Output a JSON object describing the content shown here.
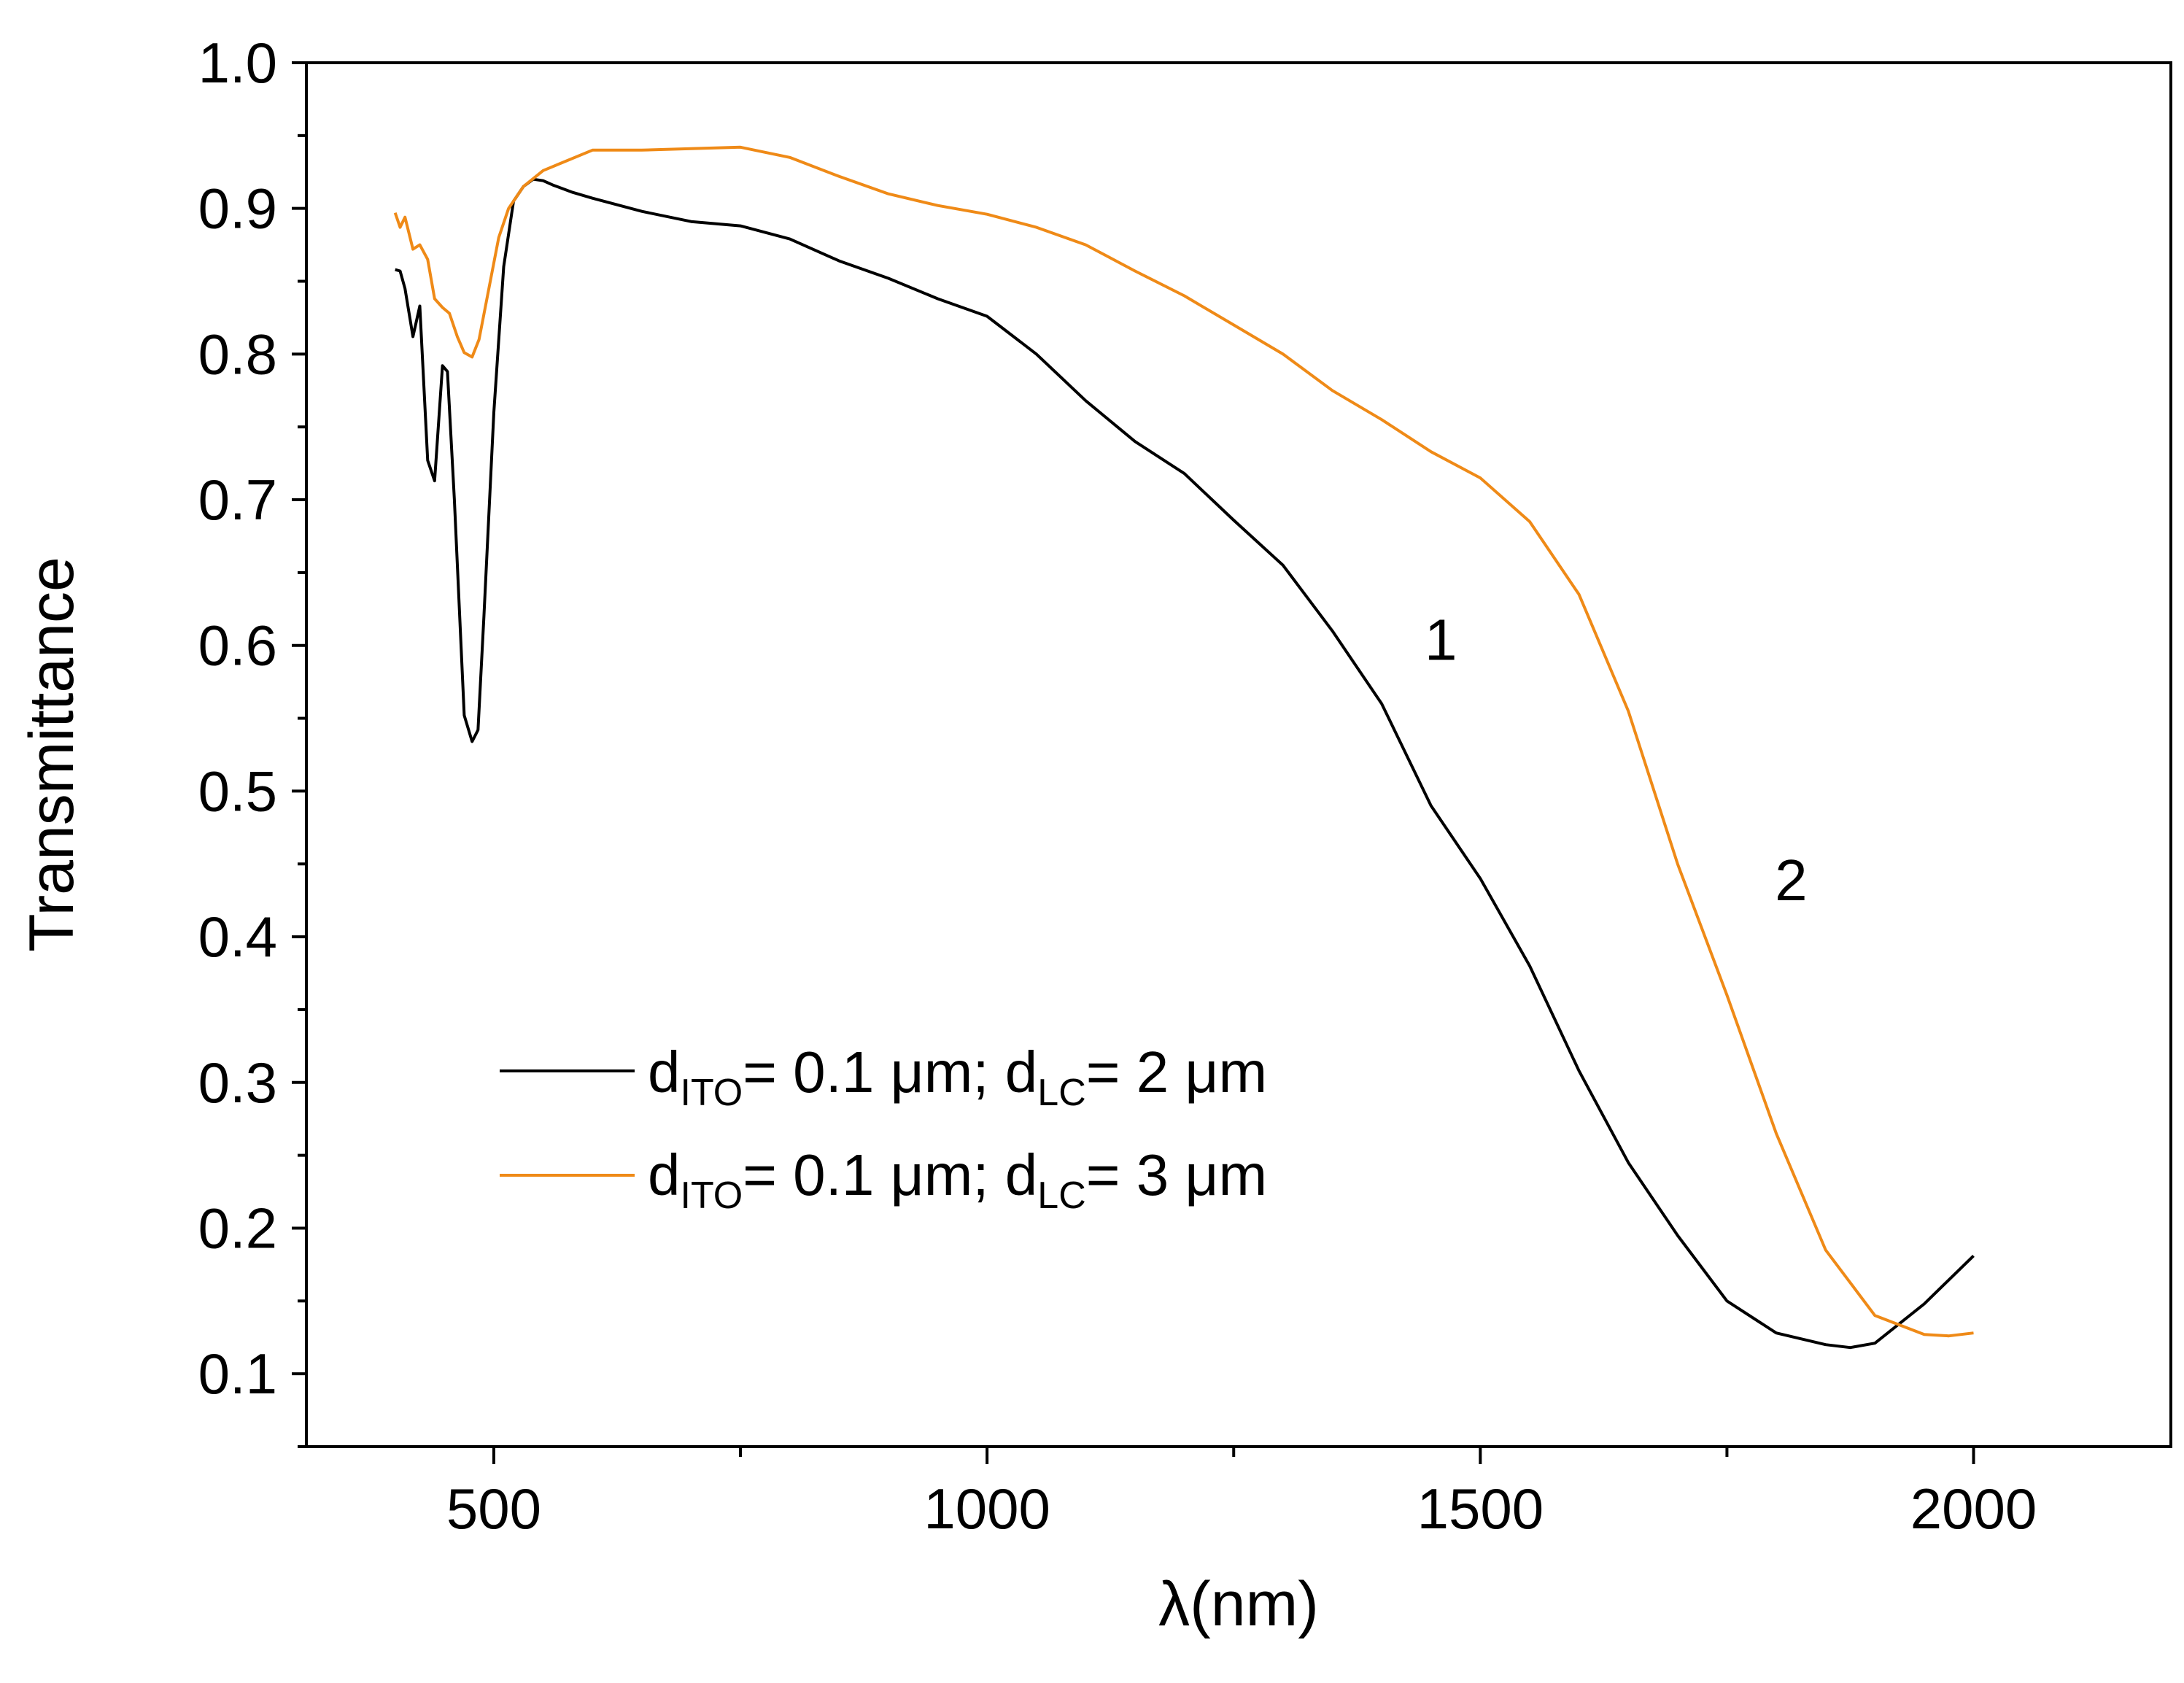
{
  "chart_data": {
    "type": "line",
    "xlabel": "λ(nm)",
    "ylabel": "Transmittance",
    "xlim": [
      310,
      2200
    ],
    "ylim": [
      0.05,
      1.0
    ],
    "x_ticks": [
      500,
      1000,
      1500,
      2000
    ],
    "x_tick_labels": [
      "500",
      "1000",
      "1500",
      "2000"
    ],
    "y_ticks": [
      0.1,
      0.2,
      0.3,
      0.4,
      0.5,
      0.6,
      0.7,
      0.8,
      0.9,
      1.0
    ],
    "y_tick_labels": [
      "0.1",
      "0.2",
      "0.3",
      "0.4",
      "0.5",
      "0.6",
      "0.7",
      "0.8",
      "0.9",
      "1.0"
    ],
    "grid": false,
    "legend_position": "lower-left",
    "series": [
      {
        "name": "1",
        "legend": {
          "base": "d",
          "sub1": "ITO",
          "mid": "= 0.1 μm; d",
          "sub2": "LC",
          "end": "= 2 μm"
        },
        "color": "#000000",
        "x": [
          400,
          405,
          410,
          418,
          425,
          433,
          440,
          448,
          453,
          460,
          470,
          478,
          484,
          490,
          500,
          510,
          520,
          530,
          540,
          550,
          560,
          580,
          600,
          650,
          700,
          750,
          800,
          850,
          900,
          950,
          1000,
          1050,
          1100,
          1150,
          1200,
          1250,
          1300,
          1350,
          1400,
          1450,
          1500,
          1550,
          1600,
          1650,
          1700,
          1750,
          1800,
          1850,
          1875,
          1900,
          1950,
          2000
        ],
        "y": [
          0.858,
          0.857,
          0.845,
          0.812,
          0.833,
          0.727,
          0.713,
          0.792,
          0.788,
          0.7,
          0.552,
          0.534,
          0.542,
          0.62,
          0.76,
          0.86,
          0.905,
          0.915,
          0.92,
          0.919,
          0.916,
          0.911,
          0.907,
          0.898,
          0.891,
          0.888,
          0.879,
          0.864,
          0.852,
          0.838,
          0.826,
          0.8,
          0.768,
          0.74,
          0.718,
          0.686,
          0.655,
          0.61,
          0.56,
          0.49,
          0.44,
          0.38,
          0.308,
          0.245,
          0.195,
          0.15,
          0.128,
          0.12,
          0.118,
          0.121,
          0.148,
          0.181
        ]
      },
      {
        "name": "2",
        "legend": {
          "base": "d",
          "sub1": "ITO",
          "mid": "= 0.1 μm; d",
          "sub2": "LC",
          "end": "= 3 μm"
        },
        "color": "#ef8a17",
        "x": [
          400,
          405,
          410,
          418,
          425,
          433,
          440,
          448,
          455,
          463,
          470,
          478,
          485,
          495,
          505,
          515,
          530,
          550,
          600,
          650,
          700,
          750,
          800,
          850,
          900,
          950,
          1000,
          1050,
          1100,
          1150,
          1200,
          1250,
          1300,
          1350,
          1400,
          1450,
          1500,
          1550,
          1600,
          1650,
          1700,
          1750,
          1800,
          1850,
          1900,
          1950,
          1975,
          2000
        ],
        "y": [
          0.897,
          0.887,
          0.894,
          0.872,
          0.875,
          0.865,
          0.838,
          0.832,
          0.828,
          0.812,
          0.801,
          0.798,
          0.81,
          0.845,
          0.88,
          0.9,
          0.915,
          0.926,
          0.94,
          0.94,
          0.941,
          0.942,
          0.935,
          0.922,
          0.91,
          0.902,
          0.896,
          0.887,
          0.875,
          0.857,
          0.84,
          0.82,
          0.8,
          0.775,
          0.755,
          0.733,
          0.715,
          0.685,
          0.635,
          0.555,
          0.45,
          0.36,
          0.265,
          0.185,
          0.14,
          0.127,
          0.126,
          0.128
        ]
      }
    ],
    "annotations": [
      {
        "text": "1",
        "x": 1460,
        "y": 0.59
      },
      {
        "text": "2",
        "x": 1815,
        "y": 0.425
      }
    ]
  }
}
